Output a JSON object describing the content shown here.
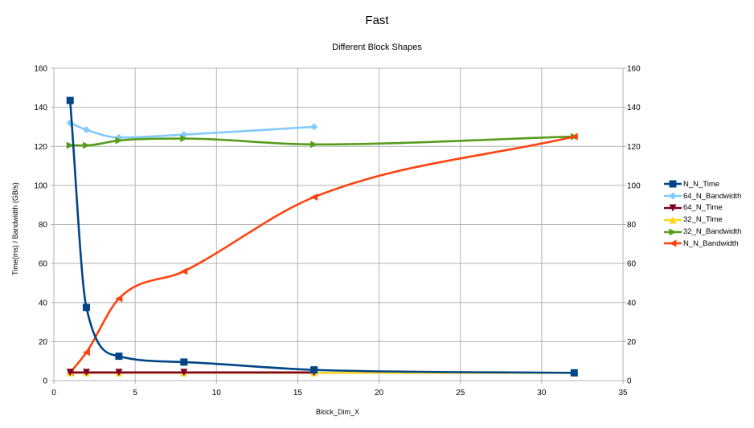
{
  "chart_data": {
    "type": "line",
    "title": "Fast",
    "subtitle": "Different Block Shapes",
    "xlabel": "Block_Dim_X",
    "ylabel": "Time(ms) / Bandwidth (GB/s)",
    "xlim": [
      0,
      35
    ],
    "ylim": [
      0,
      160
    ],
    "y2lim": [
      0,
      160
    ],
    "x_ticks": [
      "0",
      "5",
      "10",
      "15",
      "20",
      "25",
      "30",
      "35"
    ],
    "y_ticks": [
      "0",
      "20",
      "40",
      "60",
      "80",
      "100",
      "120",
      "140",
      "160"
    ],
    "grid": true,
    "legend_position": "right",
    "series": [
      {
        "name": "N_N_Time",
        "color": "#004586",
        "marker": "square",
        "x": [
          1,
          2,
          4,
          8,
          16,
          32
        ],
        "values": [
          143.5,
          37.5,
          12.5,
          9.5,
          5.5,
          4.0
        ]
      },
      {
        "name": "64_N_Bandwidth",
        "color": "#83caff",
        "marker": "diamond",
        "x": [
          1,
          2,
          4,
          8,
          16
        ],
        "values": [
          132,
          128.5,
          124.5,
          126,
          130
        ]
      },
      {
        "name": "64_N_Time",
        "color": "#7e0021",
        "marker": "triangle-down",
        "x": [
          1,
          2,
          4,
          8,
          16
        ],
        "values": [
          4.2,
          4.2,
          4.2,
          4.2,
          4.2
        ]
      },
      {
        "name": "32_N_Time",
        "color": "#ffd320",
        "marker": "triangle-up",
        "x": [
          1,
          2,
          4,
          8,
          16,
          32
        ],
        "values": [
          4.0,
          4.0,
          4.0,
          4.0,
          4.0,
          4.0
        ]
      },
      {
        "name": "32_N_Bandwidth",
        "color": "#579d1c",
        "marker": "triangle-right",
        "x": [
          1,
          2,
          4,
          8,
          16,
          32
        ],
        "values": [
          120.5,
          120.5,
          123,
          124,
          121,
          125
        ]
      },
      {
        "name": "N_N_Bandwidth",
        "color": "#ff420e",
        "marker": "triangle-left",
        "x": [
          1,
          2,
          4,
          8,
          16,
          32
        ],
        "values": [
          4,
          14.5,
          42,
          56,
          94,
          125
        ]
      }
    ]
  }
}
